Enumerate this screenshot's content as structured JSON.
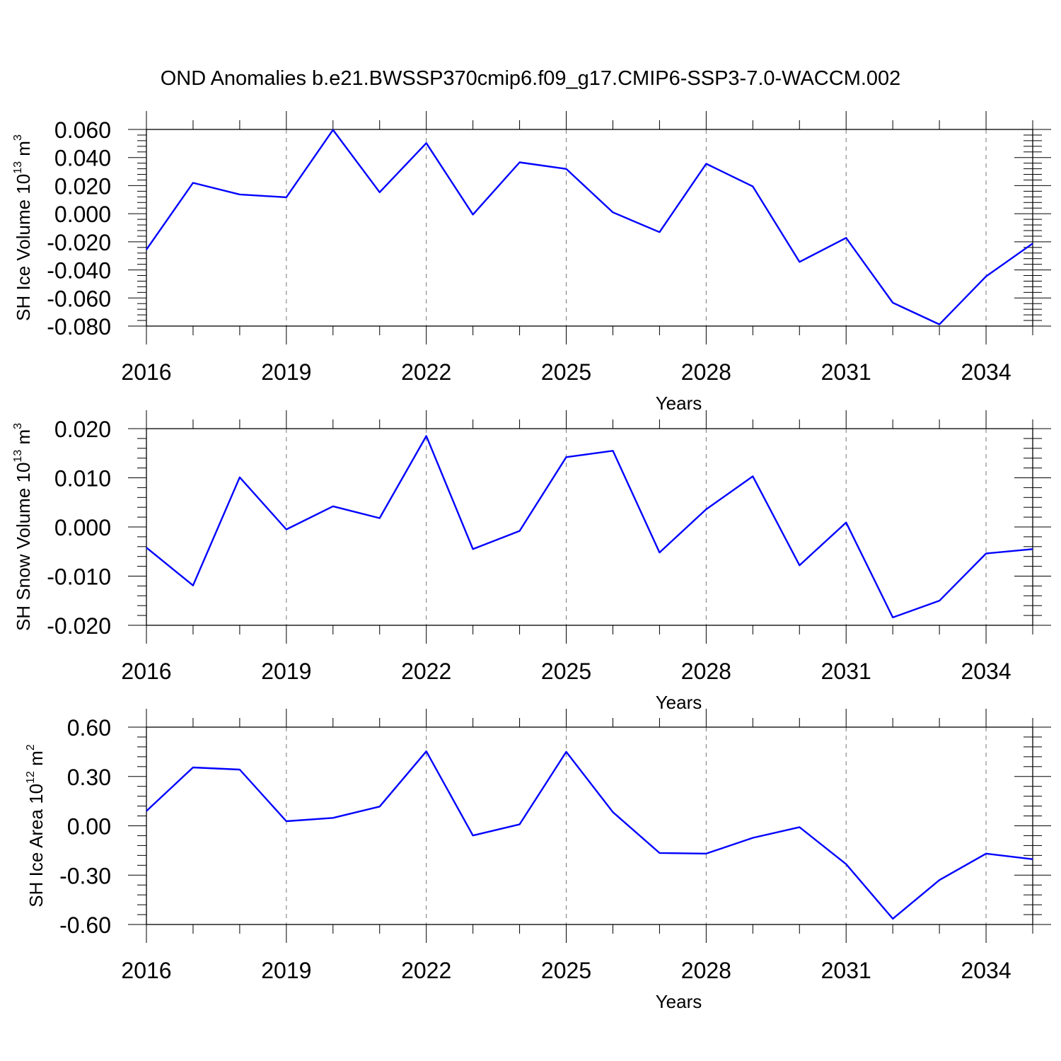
{
  "title": "OND Anomalies b.e21.BWSSP370cmip6.f09_g17.CMIP6-SSP3-7.0-WACCM.002",
  "chart_data": [
    {
      "type": "line",
      "ylabel_main": "SH Ice Volume 10",
      "ylabel_exp": "13",
      "ylabel_unit": " m",
      "ylabel_unit_exp": "3",
      "xlabel": "Years",
      "xlim": [
        2016,
        2035
      ],
      "ylim": [
        -0.08,
        0.06
      ],
      "xticks": [
        2016,
        2019,
        2022,
        2025,
        2028,
        2031,
        2034
      ],
      "xtick_labels": [
        "2016",
        "2019",
        "2022",
        "2025",
        "2028",
        "2031",
        "2034"
      ],
      "yticks": [
        0.06,
        0.04,
        0.02,
        0.0,
        -0.02,
        -0.04,
        -0.06,
        -0.08
      ],
      "ytick_labels": [
        "0.060",
        "0.040",
        "0.020",
        "0.000",
        "-0.020",
        "-0.040",
        "-0.060",
        "-0.080"
      ],
      "grid": "vertical dashed at major x ticks",
      "color": "#0000ff",
      "x": [
        2016,
        2017,
        2018,
        2019,
        2020,
        2021,
        2022,
        2023,
        2024,
        2025,
        2026,
        2027,
        2028,
        2029,
        2030,
        2031,
        2032,
        2033,
        2034,
        2035
      ],
      "values": [
        -0.0255,
        0.022,
        0.0137,
        0.0117,
        0.0597,
        0.0153,
        0.0503,
        -0.0006,
        0.0366,
        0.0319,
        0.001,
        -0.0131,
        0.0356,
        0.0194,
        -0.0343,
        -0.0172,
        -0.0634,
        -0.0788,
        -0.0446,
        -0.0212
      ]
    },
    {
      "type": "line",
      "ylabel_main": "SH Snow Volume 10",
      "ylabel_exp": "13",
      "ylabel_unit": " m",
      "ylabel_unit_exp": "3",
      "xlabel": "Years",
      "xlim": [
        2016,
        2035
      ],
      "ylim": [
        -0.02,
        0.02
      ],
      "xticks": [
        2016,
        2019,
        2022,
        2025,
        2028,
        2031,
        2034
      ],
      "xtick_labels": [
        "2016",
        "2019",
        "2022",
        "2025",
        "2028",
        "2031",
        "2034"
      ],
      "yticks": [
        0.02,
        0.01,
        0.0,
        -0.01,
        -0.02
      ],
      "ytick_labels": [
        "0.020",
        "0.010",
        "0.000",
        "-0.010",
        "-0.020"
      ],
      "grid": "vertical dashed at major x ticks",
      "color": "#0000ff",
      "x": [
        2016,
        2017,
        2018,
        2019,
        2020,
        2021,
        2022,
        2023,
        2024,
        2025,
        2026,
        2027,
        2028,
        2029,
        2030,
        2031,
        2032,
        2033,
        2034,
        2035
      ],
      "values": [
        -0.0042,
        -0.0119,
        0.0101,
        -0.0005,
        0.0042,
        0.0018,
        0.0185,
        -0.0045,
        -0.0008,
        0.0142,
        0.0155,
        -0.0052,
        0.0036,
        0.0103,
        -0.0078,
        0.0009,
        -0.0184,
        -0.015,
        -0.0054,
        -0.0045
      ]
    },
    {
      "type": "line",
      "ylabel_main": "SH Ice Area 10",
      "ylabel_exp": "12",
      "ylabel_unit": " m",
      "ylabel_unit_exp": "2",
      "xlabel": "Years",
      "xlim": [
        2016,
        2035
      ],
      "ylim": [
        -0.6,
        0.6
      ],
      "xticks": [
        2016,
        2019,
        2022,
        2025,
        2028,
        2031,
        2034
      ],
      "xtick_labels": [
        "2016",
        "2019",
        "2022",
        "2025",
        "2028",
        "2031",
        "2034"
      ],
      "yticks": [
        0.6,
        0.3,
        0.0,
        -0.3,
        -0.6
      ],
      "ytick_labels": [
        "0.60",
        "0.30",
        "0.00",
        "-0.30",
        "-0.60"
      ],
      "grid": "vertical dashed at major x ticks",
      "color": "#0000ff",
      "x": [
        2016,
        2017,
        2018,
        2019,
        2020,
        2021,
        2022,
        2023,
        2024,
        2025,
        2026,
        2027,
        2028,
        2029,
        2030,
        2031,
        2032,
        2033,
        2034,
        2035
      ],
      "values": [
        0.09,
        0.355,
        0.342,
        0.028,
        0.048,
        0.117,
        0.453,
        -0.059,
        0.009,
        0.45,
        0.083,
        -0.165,
        -0.169,
        -0.073,
        -0.008,
        -0.233,
        -0.565,
        -0.33,
        -0.169,
        -0.203
      ]
    }
  ]
}
